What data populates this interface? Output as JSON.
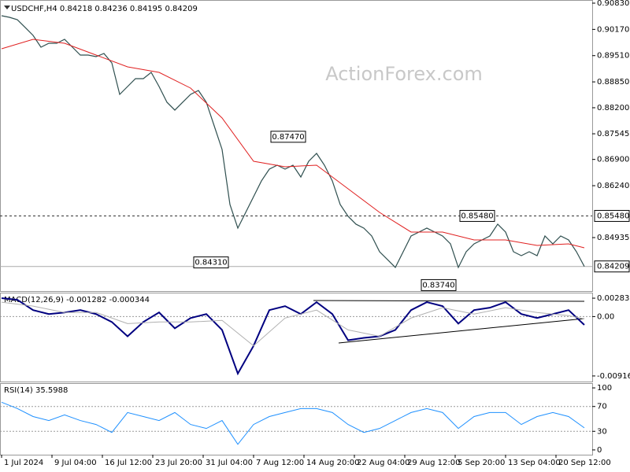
{
  "chart_data": [
    {
      "type": "line",
      "title": "USDCHF,H4  0.84218 0.84236 0.84195 0.84209",
      "watermark": "ActionForex.com",
      "xlim": [
        -0.2,
        75
      ],
      "ylim": [
        0.8359,
        0.90909
      ],
      "yticks": [
        {
          "value": 0.9083,
          "label": "0.90830"
        },
        {
          "value": 0.9017,
          "label": "0.90170"
        },
        {
          "value": 0.8951,
          "label": "0.89510"
        },
        {
          "value": 0.8885,
          "label": "0.88850"
        },
        {
          "value": 0.882,
          "label": "0.88200"
        },
        0.87545,
        {
          "value": 0.869,
          "label": "0.86900"
        },
        {
          "value": 0.8624,
          "label": "0.86240"
        },
        0.84935
      ],
      "hlines": [
        {
          "value": 0.8548,
          "label": "0.85480",
          "style": "dashed"
        },
        {
          "value": 0.84209,
          "label": "0.84209",
          "style": "solid"
        }
      ],
      "annotations": [
        {
          "x": 36.4,
          "value": 0.8747,
          "label": "0.87470"
        },
        {
          "x": 26.6,
          "value": 0.8431,
          "label": "0.84310"
        },
        {
          "x": 60.4,
          "value": 0.8548,
          "label": "0.85480"
        },
        {
          "x": 55.5,
          "value": 0.8374,
          "label": "0.83740"
        }
      ],
      "series": [
        {
          "color": "#2f4f4f",
          "width": 1.2,
          "x": [
            0,
            1,
            2,
            3,
            4,
            5,
            6,
            7,
            8,
            9,
            10,
            11,
            12,
            13,
            14,
            15,
            16,
            17,
            18,
            19,
            20,
            21,
            22,
            23,
            24,
            25,
            26,
            27,
            28,
            29,
            30,
            31,
            32,
            33,
            34,
            35,
            36,
            37,
            38,
            39,
            40,
            41,
            42,
            43,
            44,
            45,
            46,
            47,
            48,
            49,
            50,
            51,
            52,
            53,
            54,
            55,
            56,
            57,
            58,
            59,
            60,
            61,
            62,
            63,
            64,
            65,
            66,
            67,
            68,
            69,
            70,
            71,
            72,
            73,
            74
          ],
          "values": [
            0.90513,
            0.90474,
            0.90414,
            0.90217,
            0.90019,
            0.89722,
            0.89821,
            0.89821,
            0.8992,
            0.89722,
            0.89524,
            0.89524,
            0.89485,
            0.89564,
            0.89327,
            0.88535,
            0.88733,
            0.88931,
            0.88931,
            0.89089,
            0.88733,
            0.88338,
            0.8814,
            0.88338,
            0.88535,
            0.88634,
            0.88338,
            0.87744,
            0.87151,
            0.85766,
            0.85173,
            0.85568,
            0.85964,
            0.8636,
            0.86656,
            0.86755,
            0.86656,
            0.86755,
            0.86458,
            0.86854,
            0.87052,
            0.86755,
            0.8636,
            0.85766,
            0.8547,
            0.85272,
            0.85173,
            0.84975,
            0.84579,
            0.84382,
            0.84184,
            0.84579,
            0.84975,
            0.85074,
            0.85173,
            0.85074,
            0.84975,
            0.84777,
            0.84184,
            0.84579,
            0.84777,
            0.84876,
            0.84975,
            0.85272,
            0.85074,
            0.84579,
            0.8448,
            0.84579,
            0.8448,
            0.84975,
            0.84777,
            0.84975,
            0.84876,
            0.84579,
            0.84209
          ]
        },
        {
          "color": "#e02020",
          "width": 1,
          "x": [
            0,
            4,
            8,
            12,
            16,
            20,
            24,
            28,
            32,
            36,
            40,
            44,
            48,
            52,
            56,
            60,
            64,
            68,
            72,
            74
          ],
          "values": [
            0.89683,
            0.8992,
            0.89821,
            0.89524,
            0.89228,
            0.89089,
            0.88694,
            0.87942,
            0.86854,
            0.86716,
            0.86755,
            0.86162,
            0.85568,
            0.85074,
            0.85074,
            0.84876,
            0.84876,
            0.84738,
            0.84777,
            0.84678
          ]
        }
      ]
    },
    {
      "type": "line",
      "title": "MACD(12,26,9) -0.001282 -0.000344",
      "xlim": [
        -0.2,
        75
      ],
      "ylim": [
        -0.01002,
        0.00369
      ],
      "yticks": [
        0.002835,
        {
          "value": 0,
          "label": "0.00"
        },
        -0.009161
      ],
      "levels": [
        0
      ],
      "series": [
        {
          "color": "#000080",
          "width": 2,
          "x": [
            0,
            2,
            4,
            6,
            8,
            10,
            12,
            14,
            16,
            18,
            20,
            22,
            24,
            26,
            28,
            30,
            32,
            34,
            36,
            38,
            40,
            42,
            44,
            46,
            48,
            50,
            52,
            54,
            56,
            58,
            60,
            62,
            64,
            66,
            68,
            70,
            72,
            74
          ],
          "values": [
            0.002835,
            0.00259,
            0.000999,
            0.000387,
            0.000632,
            0.000999,
            0.000387,
            -0.000837,
            -0.00304,
            -0.000837,
            0.000632,
            -0.001816,
            -0.000225,
            0.000387,
            -0.002061,
            -0.008793,
            -0.004509,
            0.000999,
            0.001611,
            0.000387,
            0.002223,
            0.000387,
            -0.003652,
            -0.003285,
            -0.00304,
            -0.002061,
            0.000999,
            0.002223,
            0.001611,
            -0.001082,
            0.000999,
            0.001366,
            0.002223,
            0.000387,
            -0.000225,
            0.000387,
            0.000999,
            -0.001282
          ]
        },
        {
          "color": "#b0b0b0",
          "width": 1,
          "x": [
            0,
            4,
            8,
            12,
            16,
            20,
            24,
            28,
            32,
            36,
            40,
            44,
            48,
            52,
            56,
            60,
            64,
            68,
            72,
            74
          ],
          "values": [
            0.002223,
            0.001611,
            0.000632,
            0.000632,
            -0.001082,
            -0.000837,
            -0.000837,
            -0.000592,
            -0.004509,
            -0.000225,
            0.000999,
            -0.002061,
            -0.00304,
            -0.000225,
            0.001366,
            0.000387,
            0.001366,
            0.000632,
            0.000142,
            -0.000344
          ]
        }
      ]
    },
    {
      "type": "line",
      "title": "RSI(14) 35.5988",
      "xlim": [
        -0.2,
        75
      ],
      "ylim": [
        -7.7,
        107.7
      ],
      "yticks": [
        100,
        70,
        30,
        0
      ],
      "levels": [
        70,
        30
      ],
      "xticks": [
        {
          "value": 0,
          "label": "1 Jul 2024"
        },
        {
          "value": 6.4,
          "label": "9 Jul 04:00"
        },
        {
          "value": 12.8,
          "label": "16 Jul 12:00"
        },
        {
          "value": 19.2,
          "label": "23 Jul 20:00"
        },
        {
          "value": 25.6,
          "label": "31 Jul 04:00"
        },
        {
          "value": 32,
          "label": "7 Aug 12:00"
        },
        {
          "value": 38.4,
          "label": "14 Aug 20:00"
        },
        {
          "value": 44.8,
          "label": "22 Aug 04:00"
        },
        {
          "value": 51.2,
          "label": "29 Aug 12:00"
        },
        {
          "value": 57.6,
          "label": "5 Sep 20:00"
        },
        {
          "value": 64,
          "label": "13 Sep 04:00"
        },
        {
          "value": 70.4,
          "label": "20 Sep 12:00"
        }
      ],
      "series": [
        {
          "color": "#1e90ff",
          "width": 1,
          "x": [
            0,
            2,
            4,
            6,
            8,
            10,
            12,
            14,
            16,
            18,
            20,
            22,
            24,
            26,
            28,
            30,
            32,
            34,
            36,
            38,
            40,
            42,
            44,
            46,
            48,
            50,
            52,
            54,
            56,
            58,
            60,
            62,
            64,
            66,
            68,
            70,
            72,
            74
          ],
          "values": [
            76.9,
            66.7,
            53.8,
            47.4,
            56.4,
            47.4,
            41.0,
            28.2,
            60.3,
            53.8,
            47.4,
            60.3,
            41.0,
            34.6,
            47.4,
            9.0,
            41.0,
            53.8,
            60.3,
            66.7,
            66.7,
            60.3,
            41.0,
            28.2,
            34.6,
            47.4,
            60.3,
            66.7,
            60.3,
            34.6,
            53.8,
            60.3,
            60.3,
            41.0,
            53.8,
            60.3,
            53.8,
            35.5988
          ]
        }
      ]
    }
  ]
}
